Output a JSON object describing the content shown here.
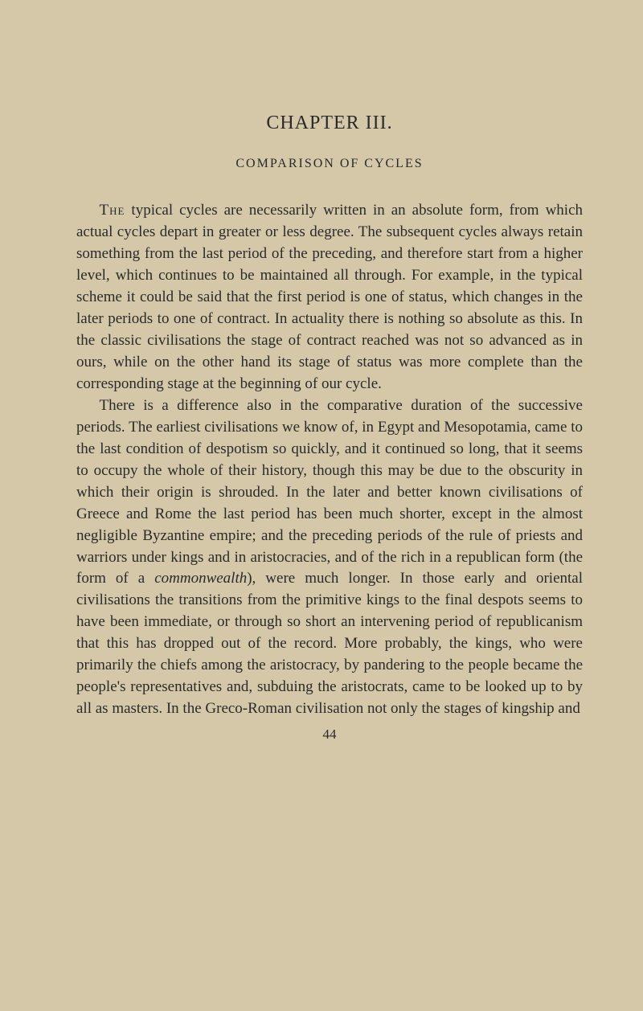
{
  "page": {
    "chapter_title": "CHAPTER III.",
    "chapter_subtitle": "COMPARISON OF CYCLES",
    "paragraph1_lead": "The",
    "paragraph1_rest": " typical cycles are necessarily written in an absolute form, from which actual cycles depart in greater or less degree. The subsequent cycles always retain something from the last period of the preceding, and therefore start from a higher level, which continues to be maintained all through. For example, in the typical scheme it could be said that the first period is one of status, which changes in the later periods to one of contract. In actuality there is nothing so absolute as this. In the classic civilisations the stage of contract reached was not so advanced as in ours, while on the other hand its stage of status was more complete than the corresponding stage at the beginning of our cycle.",
    "paragraph2_a": "There is a difference also in the comparative duration of the successive periods. The earliest civilisations we know of, in Egypt and Mesopotamia, came to the last condition of despotism so quickly, and it continued so long, that it seems to occupy the whole of their history, though this may be due to the obscurity in which their origin is shrouded. In the later and better known civilisations of Greece and Rome the last period has been much shorter, except in the almost negligible Byzantine empire; and the preceding periods of the rule of priests and warriors under kings and in aristocracies, and of the rich in a republican form (the form of a ",
    "paragraph2_italic": "commonwealth",
    "paragraph2_b": "), were much longer. In those early and oriental civilisations the transitions from the primitive kings to the final despots seems to have been immediate, or through so short an intervening period of republicanism that this has dropped out of the record. More probably, the kings, who were primarily the chiefs among the aristocracy, by pandering to the people became the people's representatives and, subduing the aristocrats, came to be looked up to by all as masters. In the Greco-Roman civilisation not only the stages of kingship and",
    "page_number": "44"
  },
  "style": {
    "background_color": "#d4c8a8",
    "text_color": "#2a2a2a",
    "body_font_size": 19,
    "title_font_size": 24,
    "subtitle_font_size": 16,
    "line_height": 1.42
  }
}
